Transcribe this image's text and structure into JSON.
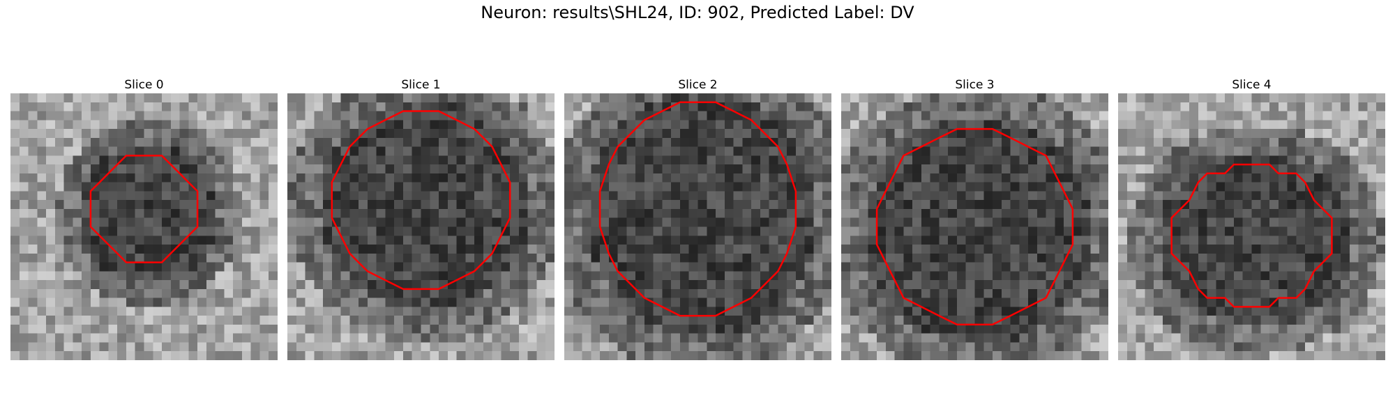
{
  "title": "Neuron: results\\SHL24, ID: 902, Predicted Label: DV",
  "contour_color": "#ff0000",
  "slices": [
    {
      "label": "Slice 0",
      "center": [
        15,
        13
      ],
      "radius": [
        6,
        6
      ],
      "intensity": "small"
    },
    {
      "label": "Slice 1",
      "center": [
        15,
        12
      ],
      "radius": [
        10,
        10
      ],
      "intensity": "medium"
    },
    {
      "label": "Slice 2",
      "center": [
        15,
        13
      ],
      "radius": [
        11,
        12
      ],
      "intensity": "large"
    },
    {
      "label": "Slice 3",
      "center": [
        15,
        15
      ],
      "radius": [
        11,
        11
      ],
      "intensity": "large"
    },
    {
      "label": "Slice 4",
      "center": [
        15,
        16
      ],
      "radius": [
        9,
        8
      ],
      "intensity": "medium"
    }
  ]
}
